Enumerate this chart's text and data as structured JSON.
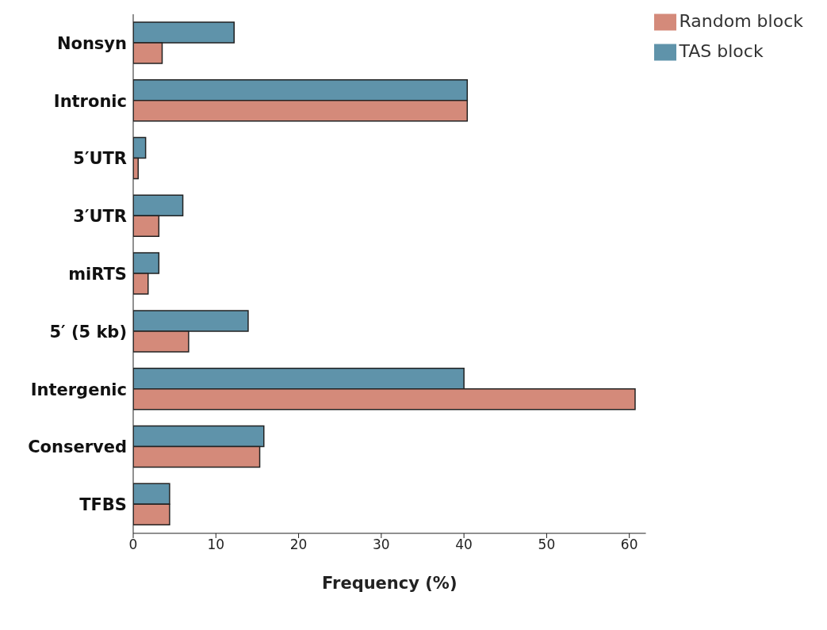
{
  "chart_data": {
    "type": "bar",
    "orientation": "horizontal",
    "xlabel": "Frequency (%)",
    "categories": [
      "Nonsyn",
      "Intronic",
      "5′UTR",
      "3′UTR",
      "miRTS",
      "5′ (5 kb)",
      "Intergenic",
      "Conserved",
      "TFBS"
    ],
    "series": [
      {
        "name": "TAS block",
        "color": "#5f93aa",
        "values": [
          12.2,
          40.4,
          1.5,
          6.0,
          3.1,
          13.9,
          40.0,
          15.8,
          4.4
        ]
      },
      {
        "name": "Random block",
        "color": "#d48a7a",
        "values": [
          3.5,
          40.4,
          0.6,
          3.1,
          1.8,
          6.7,
          60.7,
          15.3,
          4.4
        ]
      }
    ],
    "xlim": [
      0,
      62
    ],
    "xticks": [
      0,
      10,
      20,
      30,
      40,
      50,
      60
    ],
    "grid": false,
    "legend": "top right"
  }
}
